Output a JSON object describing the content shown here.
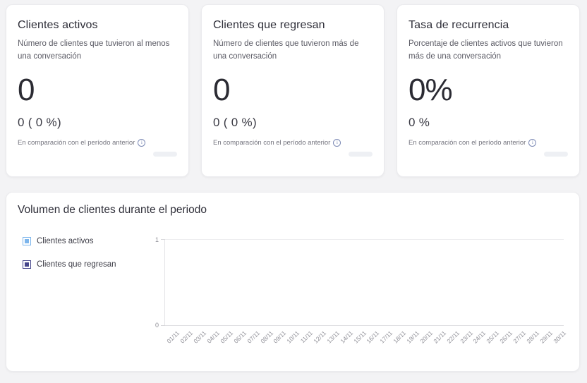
{
  "cards": [
    {
      "title": "Clientes activos",
      "description": "Número de clientes que tuvieron al menos una conversación",
      "value": "0",
      "comparison_value": "0 ( 0 %)",
      "comparison_label": "En comparación con el período anterior",
      "info_icon_glyph": "i"
    },
    {
      "title": "Clientes que regresan",
      "description": "Número de clientes que tuvieron más de una conversación",
      "value": "0",
      "comparison_value": "0 ( 0 %)",
      "comparison_label": "En comparación con el período anterior",
      "info_icon_glyph": "i"
    },
    {
      "title": "Tasa de recurrencia",
      "description": "Porcentaje de clientes activos que tuvieron más de una conversación",
      "value": "0%",
      "comparison_value": "0 %",
      "comparison_label": "En comparación con el período anterior",
      "info_icon_glyph": "i"
    }
  ],
  "chart_card": {
    "title": "Volumen de clientes durante el periodo"
  },
  "chart_data": {
    "type": "line",
    "title": "Volumen de clientes durante el periodo",
    "categories": [
      "01/11",
      "02/11",
      "03/11",
      "04/11",
      "05/11",
      "06/11",
      "07/11",
      "08/11",
      "09/11",
      "10/11",
      "11/11",
      "12/11",
      "13/11",
      "14/11",
      "15/11",
      "16/11",
      "17/11",
      "18/11",
      "19/11",
      "20/11",
      "21/11",
      "22/11",
      "23/11",
      "24/11",
      "25/11",
      "26/11",
      "27/11",
      "28/11",
      "29/11",
      "30/11"
    ],
    "series": [
      {
        "name": "Clientes activos",
        "color": "#7cb5ec",
        "values": []
      },
      {
        "name": "Clientes que regresan",
        "color": "#45458b",
        "values": []
      }
    ],
    "xlabel": "",
    "ylabel": "",
    "ylim": [
      0,
      1
    ],
    "yticks": [
      "0",
      "1"
    ],
    "legend_position": "left",
    "grid": "horizontal lines at y=0 and y=1 only",
    "plot_empty": true
  },
  "colors": {
    "page_background": "#f3f3f5",
    "card_background": "#ffffff",
    "heading_text": "#2e2e38",
    "muted_text": "#73737d",
    "axis_line": "#e0e0e3",
    "series_active": "#7cb5ec",
    "series_returning": "#45458b"
  }
}
